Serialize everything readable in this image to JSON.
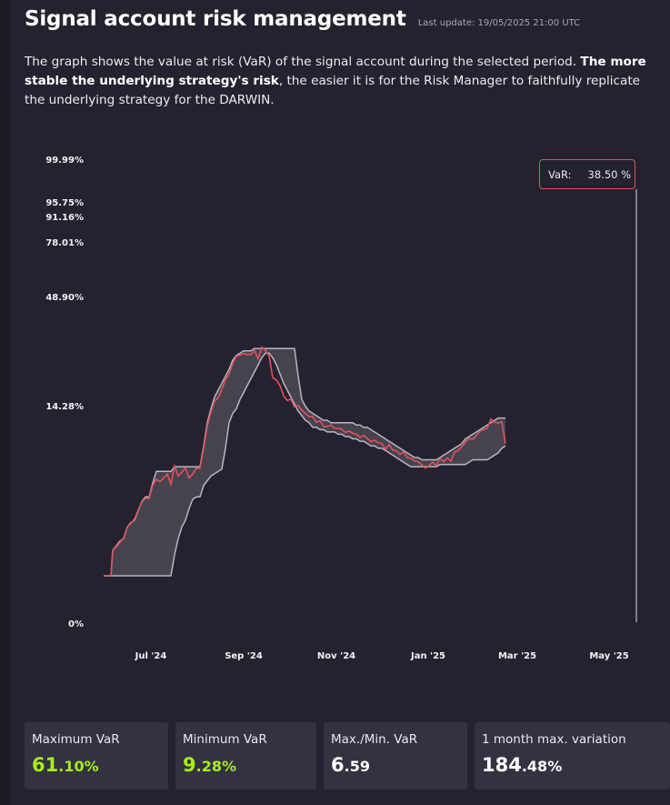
{
  "header": {
    "title": "Signal account risk management",
    "last_update": "Last update: 19/05/2025 21:00 UTC"
  },
  "description": {
    "part1": "The graph shows the value at risk (VaR) of the signal account during the selected period. ",
    "bold": "The more stable the underlying strategy's risk",
    "part2": ", the easier it is for the Risk Manager to faithfully replicate the underlying strategy for the DARWIN."
  },
  "tooltip": {
    "label": "VaR:",
    "value": "38.50 %"
  },
  "colors": {
    "var_line": "#e0525d",
    "band": "#b8b6c2",
    "band_fill": "#4a4752",
    "accent_green": "#a3f01c",
    "background": "#25222f"
  },
  "chart_data": {
    "type": "line",
    "title": "Signal account VaR",
    "xlabel": "",
    "ylabel": "VaR",
    "y_ticks": [
      "99.99%",
      "95.75%",
      "91.16%",
      "78.01%",
      "48.90%",
      "14.28%",
      "0%"
    ],
    "x_ticks": [
      "Jul '24",
      "Sep '24",
      "Nov '24",
      "Jan '25",
      "Mar '25",
      "May '25"
    ],
    "x": [
      0,
      8,
      10,
      18,
      22,
      26,
      30,
      34,
      38,
      42,
      46,
      50,
      54,
      58,
      62,
      66,
      70,
      74,
      78,
      82,
      86,
      90,
      94,
      98,
      102,
      106,
      110,
      114,
      118,
      122,
      126,
      130,
      134,
      138,
      142,
      146,
      150,
      154,
      158,
      162,
      166,
      170,
      174,
      178,
      182,
      186,
      190,
      194,
      198,
      202,
      206,
      210,
      214,
      218,
      222,
      226,
      230,
      234,
      238,
      242,
      246,
      250,
      254,
      258,
      262,
      266,
      270,
      274,
      278,
      282,
      286,
      290,
      294,
      298,
      302,
      306,
      310,
      314,
      318,
      322,
      326,
      330,
      334,
      338,
      342,
      346,
      350,
      354,
      358,
      362,
      366,
      370,
      374,
      378,
      382,
      386,
      390,
      394,
      398,
      402,
      406,
      410,
      414,
      418,
      422,
      426,
      430,
      434,
      438,
      442,
      446,
      450,
      454,
      458,
      462,
      466,
      470,
      474,
      478,
      482,
      486,
      490,
      494,
      498,
      502,
      506,
      510,
      514,
      518,
      522,
      526,
      530,
      534,
      538,
      542,
      546,
      550,
      554,
      558,
      562,
      566,
      570,
      574,
      578,
      582,
      586
    ],
    "var": [
      10.0,
      10.0,
      15.5,
      17.5,
      18.0,
      20.5,
      21.5,
      22.0,
      24.0,
      26.0,
      27.0,
      26.5,
      29.5,
      31.0,
      30.0,
      31.0,
      32.0,
      30.0,
      33.5,
      31.5,
      32.5,
      33.0,
      31.0,
      32.0,
      33.5,
      33.0,
      37.5,
      42.5,
      45.0,
      47.5,
      48.5,
      50.5,
      52.0,
      53.5,
      56.0,
      57.0,
      57.5,
      58.0,
      58.0,
      57.5,
      58.5,
      57.0,
      59.0,
      58.5,
      57.5,
      53.0,
      52.0,
      51.0,
      49.0,
      47.5,
      48.0,
      46.5,
      47.0,
      45.5,
      45.0,
      44.5,
      44.0,
      43.0,
      43.5,
      42.5,
      42.0,
      42.5,
      42.0,
      41.5,
      41.5,
      41.0,
      41.5,
      40.5,
      40.5,
      40.0,
      40.0,
      39.5,
      39.0,
      39.5,
      38.5,
      38.5,
      37.5,
      38.0,
      37.0,
      37.0,
      36.5,
      36.5,
      35.5,
      35.5,
      34.5,
      34.5,
      34.0,
      33.5,
      33.5,
      34.5,
      34.0,
      35.0,
      34.5,
      35.5,
      35.0,
      36.5,
      37.0,
      38.0,
      38.5,
      39.5,
      39.5,
      40.5,
      41.0,
      41.5,
      42.0,
      43.5,
      43.0,
      43.0,
      43.5,
      38.5
    ],
    "var_note": "VaR series sampled at the x positions above (shared index); values in % of the axis scale, last point 38.50",
    "band_upper": [
      10.0,
      10.0,
      15.5,
      17.5,
      18.0,
      20.5,
      21.5,
      22.0,
      24.0,
      26.0,
      27.0,
      27.0,
      30.0,
      32.5,
      32.5,
      32.5,
      32.5,
      32.5,
      33.5,
      33.5,
      33.5,
      33.5,
      33.5,
      33.5,
      33.5,
      33.5,
      38.0,
      43.0,
      46.0,
      48.5,
      50.0,
      51.5,
      53.0,
      54.5,
      56.5,
      57.5,
      58.0,
      58.5,
      58.5,
      58.5,
      59.0,
      59.0,
      59.0,
      59.0,
      59.0,
      59.0,
      59.0,
      59.0,
      59.0,
      59.0,
      59.0,
      59.0,
      53.0,
      48.0,
      46.5,
      45.5,
      45.0,
      44.5,
      44.0,
      43.5,
      43.5,
      43.0,
      43.0,
      43.0,
      43.0,
      43.0,
      43.0,
      43.0,
      42.5,
      42.5,
      42.0,
      42.0,
      41.5,
      41.0,
      40.5,
      40.0,
      39.5,
      39.0,
      38.5,
      38.0,
      37.5,
      37.0,
      36.5,
      36.0,
      35.5,
      35.5,
      35.0,
      35.0,
      35.0,
      35.0,
      35.0,
      35.5,
      36.0,
      36.5,
      37.0,
      37.5,
      38.0,
      38.5,
      39.5,
      40.0,
      40.5,
      41.0,
      41.5,
      42.0,
      42.5,
      43.0,
      43.5,
      44.0,
      44.0,
      44.0
    ],
    "band_lower": [
      10.0,
      10.0,
      10.0,
      10.0,
      10.0,
      10.0,
      10.0,
      10.0,
      10.0,
      10.0,
      10.0,
      10.0,
      10.0,
      10.0,
      10.0,
      10.0,
      10.0,
      10.0,
      14.5,
      18.0,
      20.5,
      22.0,
      24.5,
      26.5,
      27.0,
      27.0,
      29.5,
      30.5,
      31.5,
      32.0,
      32.5,
      33.0,
      37.5,
      43.0,
      45.0,
      46.0,
      48.0,
      49.5,
      51.0,
      52.5,
      54.0,
      55.5,
      57.0,
      58.0,
      58.0,
      57.0,
      55.5,
      53.5,
      51.5,
      50.0,
      48.5,
      47.0,
      45.5,
      44.5,
      43.5,
      43.0,
      42.0,
      42.0,
      41.5,
      41.5,
      41.0,
      41.0,
      41.0,
      40.5,
      40.5,
      40.0,
      40.0,
      39.5,
      39.5,
      39.0,
      39.0,
      38.5,
      38.0,
      38.0,
      37.5,
      37.5,
      37.0,
      36.5,
      36.0,
      35.5,
      35.0,
      34.5,
      34.0,
      33.5,
      33.5,
      33.5,
      33.5,
      33.5,
      33.5,
      33.5,
      33.5,
      34.0,
      34.0,
      34.0,
      34.0,
      34.0,
      34.0,
      34.0,
      34.0,
      34.5,
      35.0,
      35.0,
      35.0,
      35.0,
      35.0,
      35.5,
      36.0,
      36.5,
      37.5,
      38.0
    ],
    "ylim": [
      0,
      100
    ],
    "legend": "none"
  },
  "stats": [
    {
      "label": "Maximum VaR",
      "int": "61",
      "dec": ".10%",
      "green": true
    },
    {
      "label": "Minimum VaR",
      "int": "9",
      "dec": ".28%",
      "green": true
    },
    {
      "label": "Max./Min. VaR",
      "int": "6",
      "dec": ".59",
      "green": false
    },
    {
      "label": "1 month max. variation",
      "int": "184",
      "dec": ".48%",
      "green": false
    }
  ]
}
